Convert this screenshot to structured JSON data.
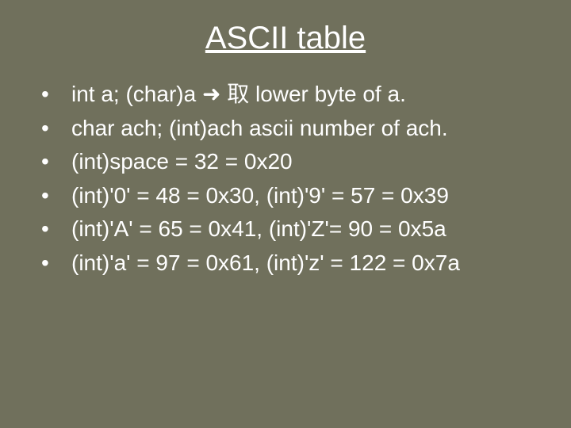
{
  "slide": {
    "background_color": "#70705c",
    "text_color": "#ffffff",
    "title": {
      "text": "ASCII table",
      "fontsize": 40,
      "underline": true,
      "align": "center"
    },
    "bullets": {
      "fontsize": 28,
      "marker_color": "#ffffff",
      "items": [
        "int a;  (char)a ➜ 取 lower byte of a.",
        "char ach;  (int)ach  ascii number of ach.",
        "(int)space = 32 = 0x20",
        "(int)'0' = 48 = 0x30, (int)'9' = 57 = 0x39",
        "(int)'A' = 65 = 0x41,  (int)'Z'= 90 = 0x5a",
        "(int)'a' = 97 = 0x61,  (int)'z' = 122 = 0x7a"
      ]
    }
  }
}
